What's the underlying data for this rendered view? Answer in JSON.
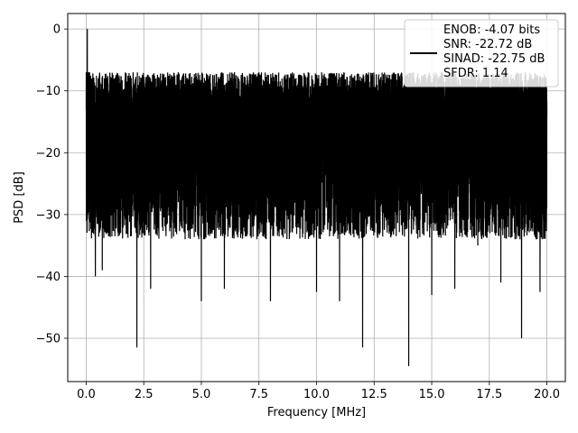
{
  "chart_data": {
    "type": "line",
    "xlabel": "Frequency [MHz]",
    "ylabel": "PSD [dB]",
    "xlim": [
      -0.8,
      20.8
    ],
    "ylim": [
      -57,
      2.5
    ],
    "x_ticks": [
      0,
      2.5,
      5,
      7.5,
      10,
      12.5,
      15,
      17.5,
      20
    ],
    "x_tick_labels": [
      "0.0",
      "2.5",
      "5.0",
      "7.5",
      "10.0",
      "12.5",
      "15.0",
      "17.5",
      "20.0"
    ],
    "y_ticks": [
      0,
      -10,
      -20,
      -30,
      -40,
      -50
    ],
    "y_tick_labels": [
      "0",
      "−10",
      "−20",
      "−30",
      "−40",
      "−50"
    ],
    "grid": true,
    "legend_position": "top-right",
    "line_color": "#000000",
    "series": [
      {
        "legend_lines": [
          "ENOB: -4.07 bits",
          "SNR: -22.72 dB",
          "SINAD: -22.75 dB",
          "SFDR: 1.14"
        ],
        "x": [
          0,
          0.05,
          0.1,
          0.15,
          0.2,
          0.3,
          0.4,
          0.5,
          0.7,
          1.0,
          1.5,
          2.0,
          2.2,
          2.5,
          2.8,
          3.0,
          3.3,
          3.7,
          4.0,
          4.5,
          5.0,
          5.5,
          6.0,
          6.5,
          7.0,
          7.5,
          8.0,
          8.5,
          9.0,
          9.5,
          10.0,
          10.5,
          11.0,
          11.6,
          12.0,
          12.5,
          13.0,
          13.6,
          14.0,
          14.5,
          15.0,
          15.5,
          16.0,
          16.5,
          17.0,
          17.5,
          18.0,
          18.5,
          18.9,
          19.3,
          19.7,
          20.0
        ],
        "y": [
          -13,
          0,
          -7,
          -8,
          -12,
          -10,
          -40,
          -11,
          -39,
          -10,
          -33,
          -12,
          -51.5,
          -11,
          -42,
          -10,
          -32,
          -10,
          -28,
          -9,
          -44,
          -8,
          -42,
          -9,
          -30,
          -7,
          -44,
          -8,
          -30,
          -8,
          -42.5,
          -8,
          -44,
          -8,
          -51.5,
          -8,
          -30,
          -8,
          -54.5,
          -9,
          -43,
          -8,
          -42,
          -8,
          -35,
          -8,
          -41,
          -8,
          -50,
          -9,
          -42.5,
          -14
        ]
      }
    ]
  }
}
